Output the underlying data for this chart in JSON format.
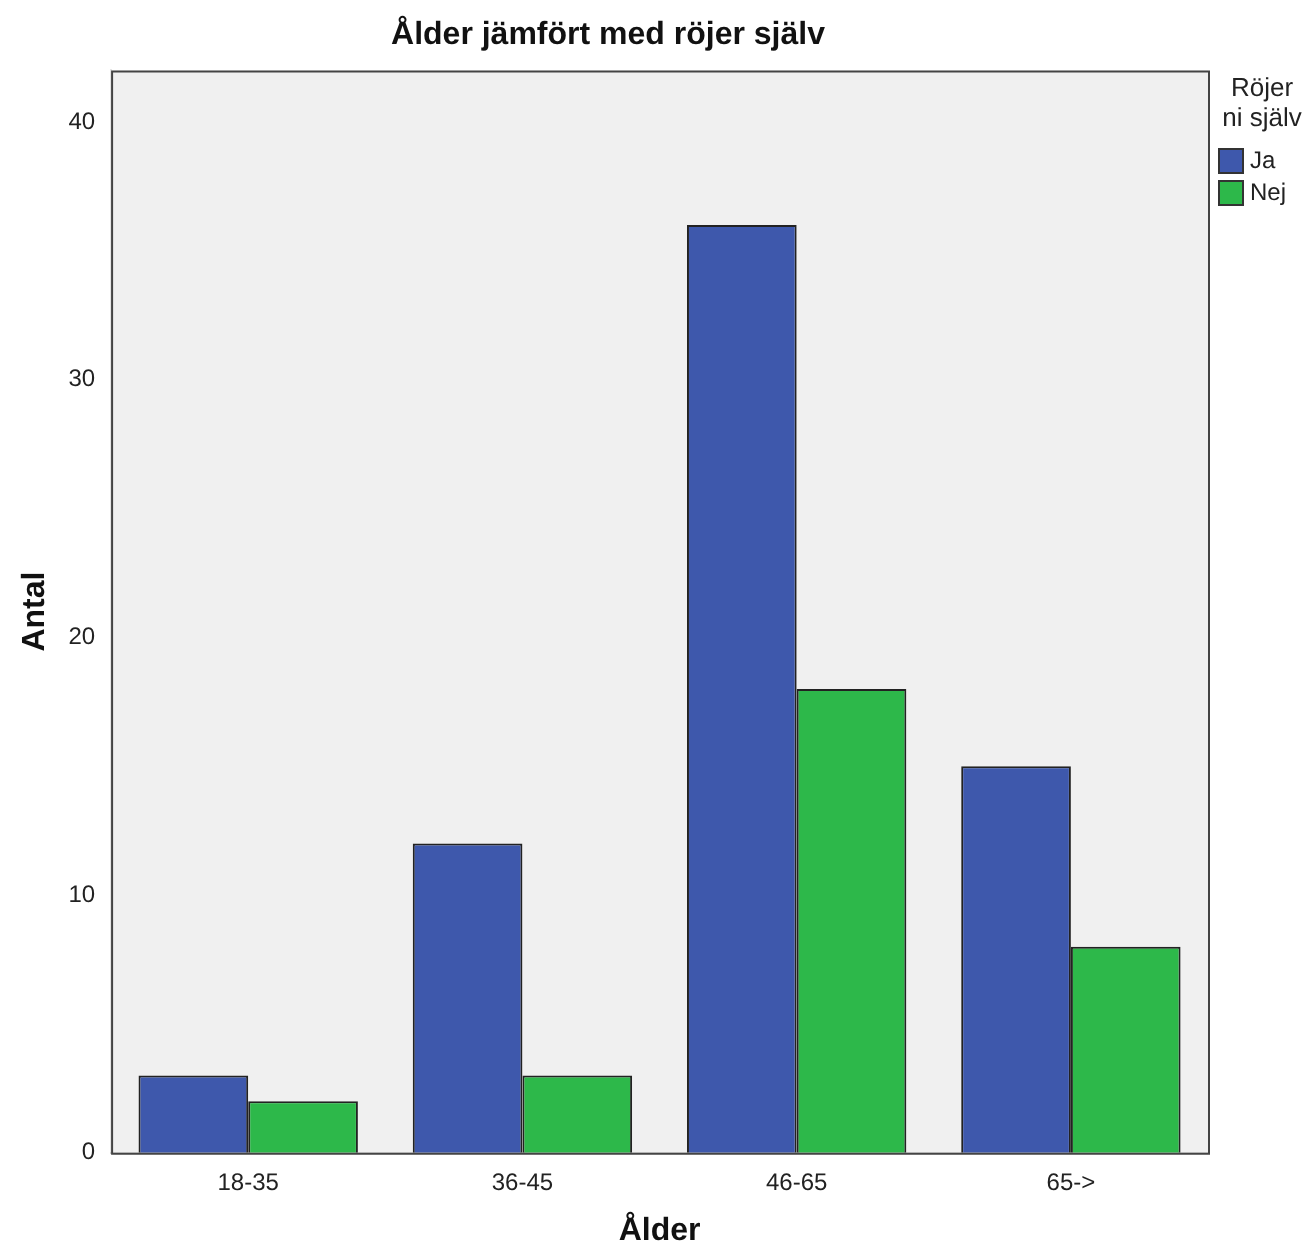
{
  "chart_data": {
    "type": "bar",
    "title": "Ålder jämfört med röjer själv",
    "xlabel": "Ålder",
    "ylabel": "Antal",
    "legend_title": "Röjer ni själv",
    "legend": "right",
    "categories": [
      "18-35",
      "36-45",
      "46-65",
      "65->"
    ],
    "series": [
      {
        "name": "Ja",
        "color": "#3e58ac",
        "values": [
          3,
          12,
          36,
          15
        ]
      },
      {
        "name": "Nej",
        "color": "#2db84a",
        "values": [
          2,
          3,
          18,
          8
        ]
      }
    ],
    "ylim": [
      0,
      42
    ],
    "yticks": [
      0,
      10,
      20,
      30,
      40
    ],
    "grid": false
  }
}
